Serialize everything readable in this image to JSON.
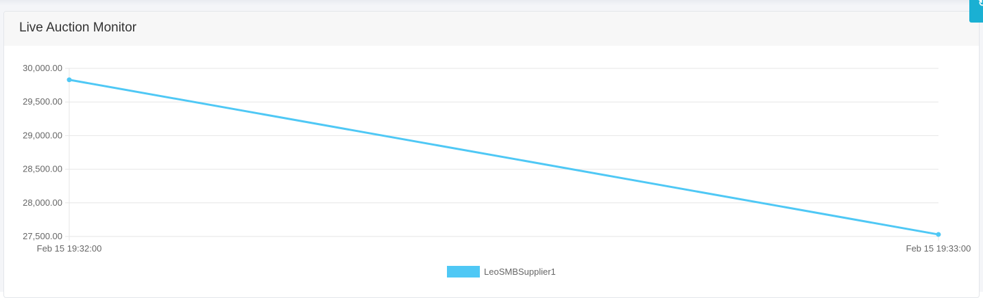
{
  "card": {
    "title": "Live Auction Monitor"
  },
  "corner_button": {
    "icon": "refresh-icon"
  },
  "chart_data": {
    "type": "line",
    "x": [
      "Feb 15 19:32:00",
      "Feb 15 19:33:00"
    ],
    "series": [
      {
        "name": "LeoSMBSupplier1",
        "values": [
          29830,
          27530
        ],
        "color": "#4fc8f5"
      }
    ],
    "ylim": [
      27500,
      30000
    ],
    "yticks": [
      30000,
      29500,
      29000,
      28500,
      28000,
      27500
    ],
    "ytick_labels": [
      "30,000.00",
      "29,500.00",
      "29,000.00",
      "28,500.00",
      "28,000.00",
      "27,500.00"
    ],
    "grid": true,
    "legend": "bottom-center"
  }
}
